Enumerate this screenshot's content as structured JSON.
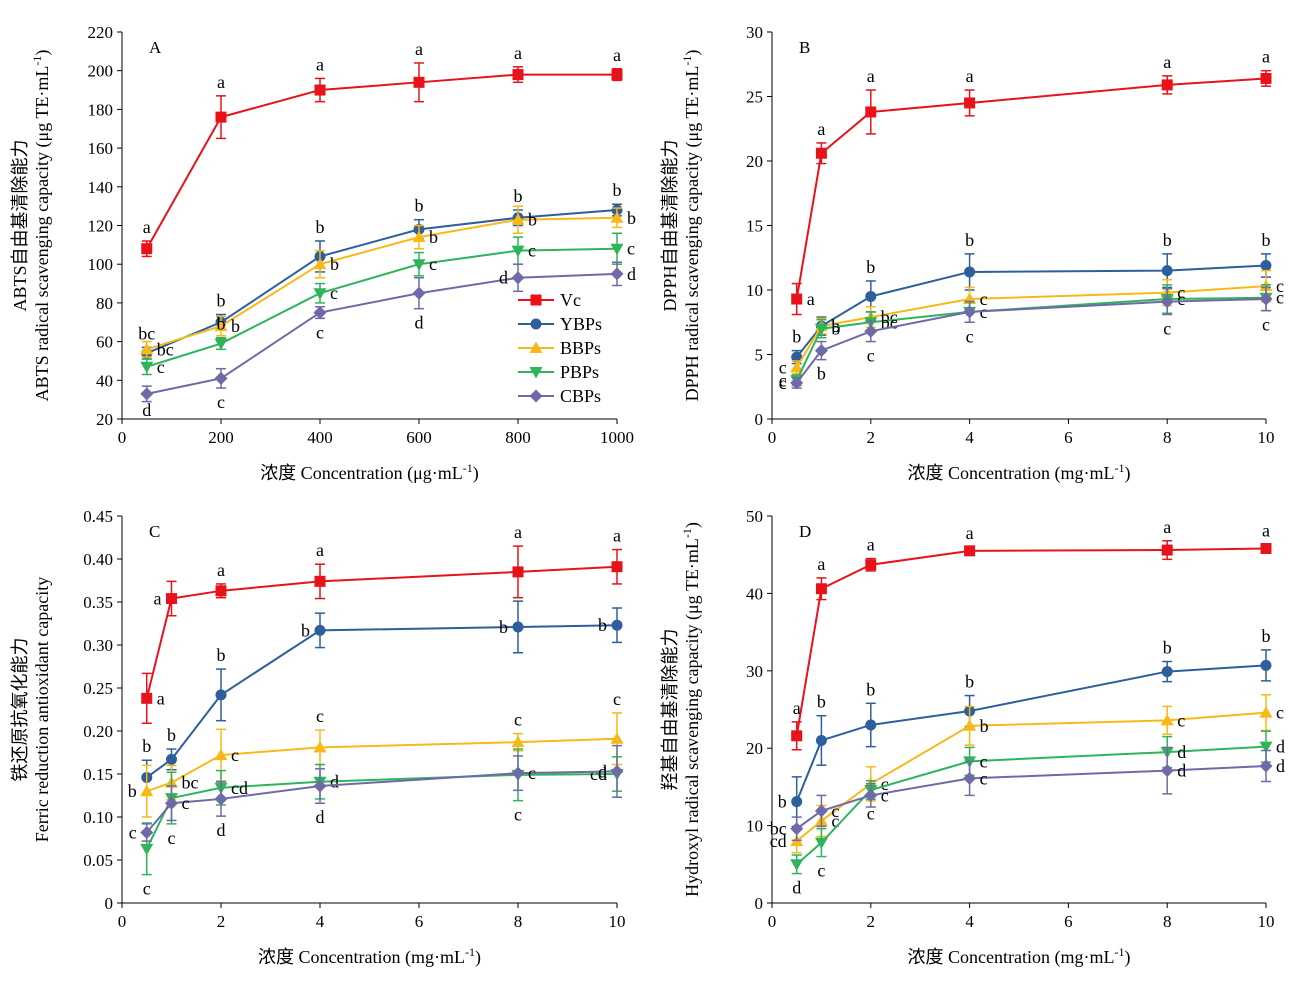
{
  "colors": {
    "Vc": "#e8121b",
    "YBPs": "#2e5f9c",
    "BBPs": "#f7b918",
    "PBPs": "#2fb45c",
    "CBPs": "#6e6aa7"
  },
  "legend": {
    "placement": "inside lower-right of panel A",
    "entries": [
      {
        "name": "Vc",
        "marker": "square"
      },
      {
        "name": "YBPs",
        "marker": "circle"
      },
      {
        "name": "BBPs",
        "marker": "triangle-up"
      },
      {
        "name": "PBPs",
        "marker": "triangle-down"
      },
      {
        "name": "CBPs",
        "marker": "diamond"
      }
    ]
  },
  "chart_data": [
    {
      "type": "line",
      "panel": "A",
      "ylabel_cn": "ABTS自由基清除能力",
      "ylabel": "ABTS radical scavenging capacity (μg TE·mL",
      "ylabel_sup": "-1",
      "ylabel_end": ")",
      "xlabel": "浓度 Concentration (μg·mL",
      "xlabel_sup": "-1",
      "xlabel_end": ")",
      "xlim": [
        0,
        1000
      ],
      "ylim": [
        20,
        220
      ],
      "xticks": [
        0,
        200,
        400,
        600,
        800,
        1000
      ],
      "yticks": [
        20,
        40,
        60,
        80,
        100,
        120,
        140,
        160,
        180,
        200,
        220
      ],
      "grid": false,
      "x": [
        50,
        200,
        400,
        600,
        800,
        1000
      ],
      "series": [
        {
          "name": "Vc",
          "values": [
            108,
            176,
            190,
            194,
            198,
            198
          ],
          "errors": [
            4,
            11,
            6,
            10,
            4,
            3
          ],
          "labels": [
            "a",
            "a",
            "a",
            "a",
            "a",
            "a"
          ],
          "label_pos": [
            "up",
            "up",
            "up",
            "up",
            "up",
            "up"
          ]
        },
        {
          "name": "YBPs",
          "values": [
            54,
            70,
            104,
            118,
            124,
            128
          ],
          "errors": [
            3,
            4,
            8,
            5,
            4,
            3
          ],
          "labels": [
            "bc",
            "b",
            "b",
            "b",
            "b",
            "b"
          ],
          "label_pos": [
            "up",
            "up",
            "up",
            "up",
            "up",
            "up"
          ]
        },
        {
          "name": "BBPs",
          "values": [
            56,
            68,
            100,
            114,
            123,
            124
          ],
          "errors": [
            4,
            5,
            7,
            6,
            7,
            5
          ],
          "labels": [
            "bc",
            "b",
            "b",
            "b",
            "b",
            "b"
          ],
          "label_pos": [
            "right",
            "right",
            "right",
            "right",
            "right",
            "right"
          ]
        },
        {
          "name": "PBPs",
          "values": [
            47,
            59,
            85,
            100,
            107,
            108
          ],
          "errors": [
            4,
            3,
            5,
            6,
            7,
            8
          ],
          "labels": [
            "c",
            "b",
            "c",
            "c",
            "c",
            "c"
          ],
          "label_pos": [
            "right",
            "up",
            "right",
            "right",
            "right",
            "right"
          ]
        },
        {
          "name": "CBPs",
          "values": [
            33,
            41,
            75,
            85,
            93,
            95
          ],
          "errors": [
            4,
            5,
            3,
            8,
            7,
            6
          ],
          "labels": [
            "d",
            "c",
            "c",
            "d",
            "d",
            "d"
          ],
          "label_pos": [
            "down",
            "down",
            "down",
            "down",
            "left",
            "right"
          ]
        }
      ]
    },
    {
      "type": "line",
      "panel": "B",
      "ylabel_cn": "DPPH自由基清除能力",
      "ylabel": "DPPH radical scavenging capacity (μg TE·mL",
      "ylabel_sup": "-1",
      "ylabel_end": ")",
      "xlabel": "浓度 Concentration (mg·mL",
      "xlabel_sup": "-1",
      "xlabel_end": ")",
      "xlim": [
        0,
        10
      ],
      "ylim": [
        0,
        30
      ],
      "xticks": [
        0,
        2,
        4,
        6,
        8,
        10
      ],
      "yticks": [
        0,
        5,
        10,
        15,
        20,
        25,
        30
      ],
      "grid": false,
      "x": [
        0.5,
        1,
        2,
        4,
        8,
        10
      ],
      "series": [
        {
          "name": "Vc",
          "values": [
            9.3,
            20.6,
            23.8,
            24.5,
            25.9,
            26.4
          ],
          "errors": [
            1.2,
            0.8,
            1.7,
            1.0,
            0.7,
            0.6
          ],
          "labels": [
            "a",
            "a",
            "a",
            "a",
            "a",
            "a"
          ],
          "label_pos": [
            "right",
            "up",
            "up",
            "up",
            "up",
            "up"
          ]
        },
        {
          "name": "YBPs",
          "values": [
            4.8,
            7.2,
            9.5,
            11.4,
            11.5,
            11.9
          ],
          "errors": [
            0.5,
            0.7,
            1.2,
            1.4,
            1.3,
            0.9
          ],
          "labels": [
            "b",
            "b",
            "b",
            "b",
            "b",
            "b"
          ],
          "label_pos": [
            "up",
            "right",
            "up",
            "up",
            "up",
            "up"
          ]
        },
        {
          "name": "BBPs",
          "values": [
            4.0,
            7.2,
            7.9,
            9.3,
            9.8,
            10.3
          ],
          "errors": [
            0.5,
            0.6,
            0.8,
            0.9,
            1.0,
            1.2
          ],
          "labels": [
            "c",
            "b",
            "bc",
            "c",
            "c",
            "c"
          ],
          "label_pos": [
            "left",
            "right",
            "right",
            "right",
            "right",
            "right"
          ]
        },
        {
          "name": "PBPs",
          "values": [
            3.0,
            7.0,
            7.5,
            8.3,
            9.3,
            9.4
          ],
          "errors": [
            0.4,
            0.7,
            0.8,
            0.8,
            1.1,
            1.0
          ],
          "labels": [
            "c",
            "b",
            "bc",
            "c",
            "c",
            "c"
          ],
          "label_pos": [
            "left",
            "right",
            "right",
            "right",
            "right",
            "right"
          ]
        },
        {
          "name": "CBPs",
          "values": [
            2.8,
            5.3,
            6.8,
            8.3,
            9.1,
            9.3
          ],
          "errors": [
            0.4,
            0.7,
            0.8,
            0.8,
            1.0,
            0.9
          ],
          "labels": [
            "c",
            "b",
            "c",
            "c",
            "c",
            "c"
          ],
          "label_pos": [
            "left",
            "down",
            "down",
            "down",
            "down",
            "down"
          ]
        }
      ]
    },
    {
      "type": "line",
      "panel": "C",
      "ylabel_cn": "铁还原抗氧化能力",
      "ylabel": "Ferric reduction antioxidant capacity",
      "ylabel_sup": "",
      "ylabel_end": "",
      "xlabel": "浓度 Concentration (mg·mL",
      "xlabel_sup": "-1",
      "xlabel_end": ")",
      "xlim": [
        0,
        10
      ],
      "ylim": [
        0,
        0.45
      ],
      "xticks": [
        0,
        2,
        4,
        6,
        8,
        10
      ],
      "yticks": [
        0,
        0.05,
        0.1,
        0.15,
        0.2,
        0.25,
        0.3,
        0.35,
        0.4,
        0.45
      ],
      "yticklabels": [
        "0",
        "0.05",
        "0.10",
        "0.15",
        "0.20",
        "0.25",
        "0.30",
        "0.35",
        "0.40",
        "0.45"
      ],
      "grid": false,
      "x": [
        0.5,
        1,
        2,
        4,
        8,
        10
      ],
      "series": [
        {
          "name": "Vc",
          "values": [
            0.238,
            0.354,
            0.363,
            0.374,
            0.385,
            0.391
          ],
          "errors": [
            0.029,
            0.02,
            0.008,
            0.02,
            0.03,
            0.02
          ],
          "labels": [
            "a",
            "a",
            "a",
            "a",
            "a",
            "a"
          ],
          "label_pos": [
            "right",
            "left",
            "up",
            "up",
            "up",
            "up"
          ]
        },
        {
          "name": "YBPs",
          "values": [
            0.146,
            0.167,
            0.242,
            0.317,
            0.321,
            0.323
          ],
          "errors": [
            0.02,
            0.012,
            0.03,
            0.02,
            0.03,
            0.02
          ],
          "labels": [
            "b",
            "b",
            "b",
            "b",
            "b",
            "b"
          ],
          "label_pos": [
            "up",
            "up",
            "up",
            "left",
            "left",
            "left"
          ]
        },
        {
          "name": "BBPs",
          "values": [
            0.13,
            0.14,
            0.172,
            0.181,
            0.187,
            0.191
          ],
          "errors": [
            0.03,
            0.02,
            0.03,
            0.02,
            0.01,
            0.03
          ],
          "labels": [
            "b",
            "bc",
            "c",
            "c",
            "c",
            "c"
          ],
          "label_pos": [
            "left",
            "right",
            "right",
            "up",
            "up",
            "up"
          ]
        },
        {
          "name": "PBPs",
          "values": [
            0.063,
            0.122,
            0.134,
            0.141,
            0.149,
            0.15
          ],
          "errors": [
            0.03,
            0.03,
            0.02,
            0.02,
            0.03,
            0.02
          ],
          "labels": [
            "c",
            "c",
            "cd",
            "d",
            "c",
            "cd"
          ],
          "label_pos": [
            "down",
            "down",
            "right",
            "right",
            "down",
            "left"
          ]
        },
        {
          "name": "CBPs",
          "values": [
            0.082,
            0.116,
            0.121,
            0.136,
            0.151,
            0.153
          ],
          "errors": [
            0.01,
            0.02,
            0.02,
            0.02,
            0.02,
            0.03
          ],
          "labels": [
            "c",
            "c",
            "d",
            "d",
            "c",
            "d"
          ],
          "label_pos": [
            "left",
            "right",
            "down",
            "down",
            "right",
            "left"
          ]
        }
      ]
    },
    {
      "type": "line",
      "panel": "D",
      "ylabel_cn": "羟基自由基清除能力",
      "ylabel": "Hydroxyl radical scavenging capacity (μg TE·mL",
      "ylabel_sup": "-1",
      "ylabel_end": ")",
      "xlabel": "浓度 Concentration (mg·mL",
      "xlabel_sup": "-1",
      "xlabel_end": ")",
      "xlim": [
        0,
        10
      ],
      "ylim": [
        0,
        50
      ],
      "xticks": [
        0,
        2,
        4,
        6,
        8,
        10
      ],
      "yticks": [
        0,
        10,
        20,
        30,
        40,
        50
      ],
      "grid": false,
      "x": [
        0.5,
        1,
        2,
        4,
        8,
        10
      ],
      "series": [
        {
          "name": "Vc",
          "values": [
            21.6,
            40.6,
            43.7,
            45.5,
            45.6,
            45.8
          ],
          "errors": [
            1.8,
            1.4,
            0.8,
            0.5,
            1.2,
            0.5
          ],
          "labels": [
            "a",
            "a",
            "a",
            "a",
            "a",
            "a"
          ],
          "label_pos": [
            "up",
            "up",
            "up",
            "up",
            "up",
            "up"
          ]
        },
        {
          "name": "YBPs",
          "values": [
            13.1,
            21.0,
            23.0,
            24.8,
            29.9,
            30.7
          ],
          "errors": [
            3.2,
            3.2,
            2.8,
            2.0,
            1.3,
            2.0
          ],
          "labels": [
            "b",
            "b",
            "b",
            "b",
            "b",
            "b"
          ],
          "label_pos": [
            "left",
            "up",
            "up",
            "up",
            "up",
            "up"
          ]
        },
        {
          "name": "BBPs",
          "values": [
            8.0,
            10.6,
            15.4,
            22.9,
            23.6,
            24.6
          ],
          "errors": [
            1.5,
            2.0,
            2.2,
            2.5,
            1.8,
            2.3
          ],
          "labels": [
            "cd",
            "c",
            "c",
            "b",
            "c",
            "c"
          ],
          "label_pos": [
            "left",
            "right",
            "right",
            "right",
            "right",
            "right"
          ]
        },
        {
          "name": "PBPs",
          "values": [
            5.0,
            7.8,
            14.6,
            18.3,
            19.5,
            20.2
          ],
          "errors": [
            1.2,
            1.8,
            1.2,
            1.8,
            2.0,
            2.0
          ],
          "labels": [
            "d",
            "c",
            "c",
            "c",
            "d",
            "d"
          ],
          "label_pos": [
            "down",
            "down",
            "down",
            "right",
            "right",
            "right"
          ]
        },
        {
          "name": "CBPs",
          "values": [
            9.6,
            11.9,
            13.9,
            16.1,
            17.1,
            17.7
          ],
          "errors": [
            1.5,
            2.0,
            1.5,
            2.2,
            3.0,
            2.0
          ],
          "labels": [
            "bc",
            "c",
            "c",
            "c",
            "d",
            "d"
          ],
          "label_pos": [
            "left",
            "right",
            "right",
            "right",
            "right",
            "right"
          ]
        }
      ]
    }
  ],
  "panel_letters": [
    "A",
    "B",
    "C",
    "D"
  ]
}
